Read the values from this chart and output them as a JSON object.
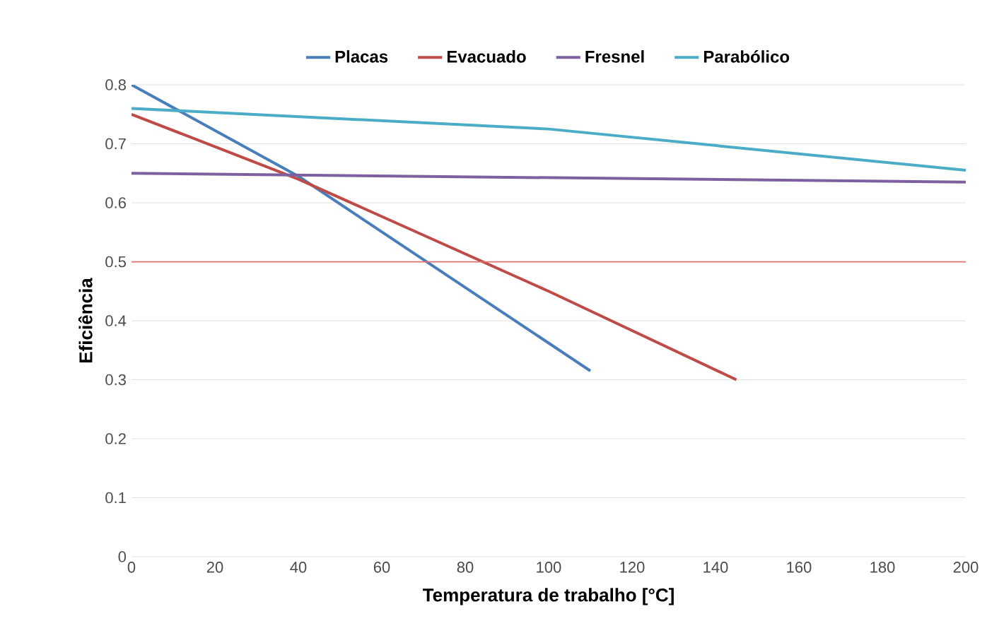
{
  "chart_data": {
    "type": "line",
    "xlabel": "Temperatura de trabalho [°C]",
    "ylabel": "Eficiência",
    "xlim": [
      0,
      200
    ],
    "xticks": [
      0,
      20,
      40,
      60,
      80,
      100,
      120,
      140,
      160,
      180,
      200
    ],
    "ylim": [
      0,
      0.8
    ],
    "yticks": [
      0,
      0.1,
      0.2,
      0.3,
      0.4,
      0.5,
      0.6,
      0.7,
      0.8
    ],
    "grid": "y",
    "legend": "top",
    "marker": "none",
    "line_style": "solid",
    "series": [
      {
        "name": "Placas",
        "color": "#4a7ebb",
        "x": [
          0,
          40,
          110
        ],
        "values": [
          0.8,
          0.645,
          0.315
        ]
      },
      {
        "name": "Evacuado",
        "color": "#be4b48",
        "x": [
          0,
          40,
          100,
          145
        ],
        "values": [
          0.75,
          0.64,
          0.45,
          0.3
        ]
      },
      {
        "name": "Fresnel",
        "color": "#7d60a0",
        "x": [
          0,
          200
        ],
        "values": [
          0.65,
          0.635
        ]
      },
      {
        "name": "Parabólico",
        "color": "#4bacc6",
        "x": [
          0,
          100,
          200
        ],
        "values": [
          0.76,
          0.725,
          0.655
        ]
      }
    ],
    "ref_lines": [
      {
        "axis": "y",
        "value": 0.5,
        "color": "#e07070"
      }
    ]
  }
}
